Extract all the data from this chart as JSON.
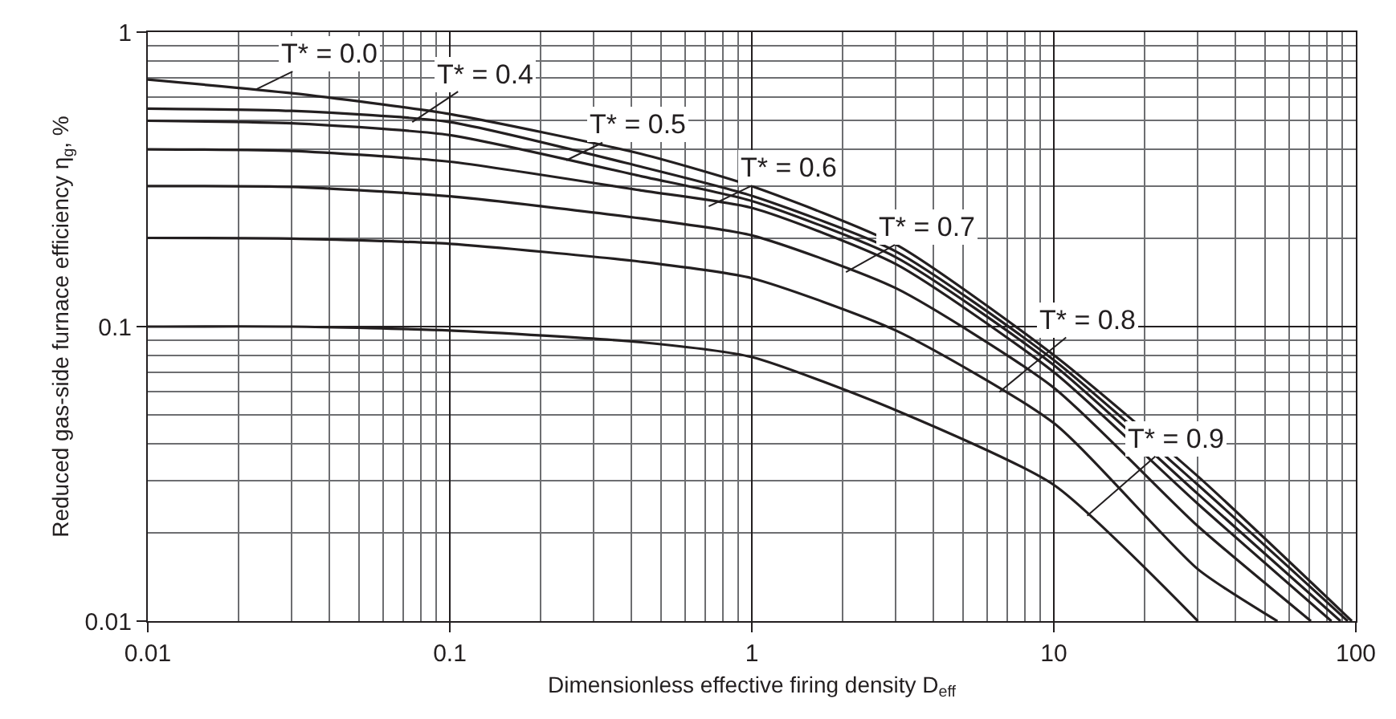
{
  "chart_data": {
    "type": "line",
    "xlabel": "Dimensionless effective firing density D$_{eff}$",
    "ylabel": "Reduced gas-side furnace efficiency η$_{g}$, %",
    "log": "xy",
    "grid": true,
    "marker": "none",
    "line_style": "solid",
    "xlim": [
      0.01,
      100
    ],
    "ylim": [
      0.01,
      1
    ],
    "xticks": [
      0.01,
      0.1,
      1,
      10,
      100
    ],
    "yticks": [
      0.01,
      0.1,
      1
    ],
    "series": [
      {
        "color": "#231f20",
        "x": [
          0.01,
          0.03,
          0.1,
          0.43,
          1,
          3,
          10,
          30,
          97
        ],
        "values": [
          0.69,
          0.62,
          0.527,
          0.386,
          0.3,
          0.19,
          0.08,
          0.031,
          0.01
        ]
      },
      {
        "color": "#231f20",
        "x": [
          0.01,
          0.03,
          0.1,
          0.43,
          1,
          3,
          10,
          30,
          94
        ],
        "values": [
          0.55,
          0.54,
          0.495,
          0.349,
          0.278,
          0.18,
          0.077,
          0.029,
          0.01
        ]
      },
      {
        "color": "#231f20",
        "x": [
          0.01,
          0.03,
          0.1,
          0.43,
          1,
          3,
          10,
          30,
          89
        ],
        "values": [
          0.5,
          0.49,
          0.447,
          0.324,
          0.267,
          0.172,
          0.074,
          0.027,
          0.01
        ]
      },
      {
        "color": "#231f20",
        "x": [
          0.01,
          0.03,
          0.1,
          0.43,
          1,
          3,
          10,
          30,
          83
        ],
        "values": [
          0.4,
          0.395,
          0.363,
          0.29,
          0.253,
          0.163,
          0.07,
          0.025,
          0.01
        ]
      },
      {
        "color": "#231f20",
        "x": [
          0.01,
          0.03,
          0.1,
          0.43,
          1,
          3,
          10,
          30,
          71
        ],
        "values": [
          0.3,
          0.298,
          0.277,
          0.233,
          0.204,
          0.135,
          0.062,
          0.021,
          0.01
        ]
      },
      {
        "color": "#231f20",
        "x": [
          0.01,
          0.03,
          0.1,
          0.43,
          1,
          3,
          10,
          30,
          55
        ],
        "values": [
          0.2,
          0.199,
          0.191,
          0.166,
          0.146,
          0.097,
          0.047,
          0.015,
          0.01
        ]
      },
      {
        "color": "#231f20",
        "x": [
          0.01,
          0.03,
          0.1,
          0.43,
          1,
          3,
          10,
          30
        ],
        "values": [
          0.1,
          0.1,
          0.097,
          0.0885,
          0.0788,
          0.052,
          0.029,
          0.01
        ]
      }
    ],
    "annotations": [
      {
        "text": "T* = 0.0",
        "x": 0.0229,
        "y": 0.64
      },
      {
        "text": "T* = 0.4",
        "x": 0.0751,
        "y": 0.495
      },
      {
        "text": "T* = 0.5",
        "x": 0.243,
        "y": 0.367
      },
      {
        "text": "T* = 0.6",
        "x": 0.72,
        "y": 0.256
      },
      {
        "text": "T* = 0.7",
        "x": 2.05,
        "y": 0.153
      },
      {
        "text": "T* = 0.8",
        "x": 6.6,
        "y": 0.06
      },
      {
        "text": "T* = 0.9",
        "x": 12.9,
        "y": 0.0228
      }
    ]
  }
}
